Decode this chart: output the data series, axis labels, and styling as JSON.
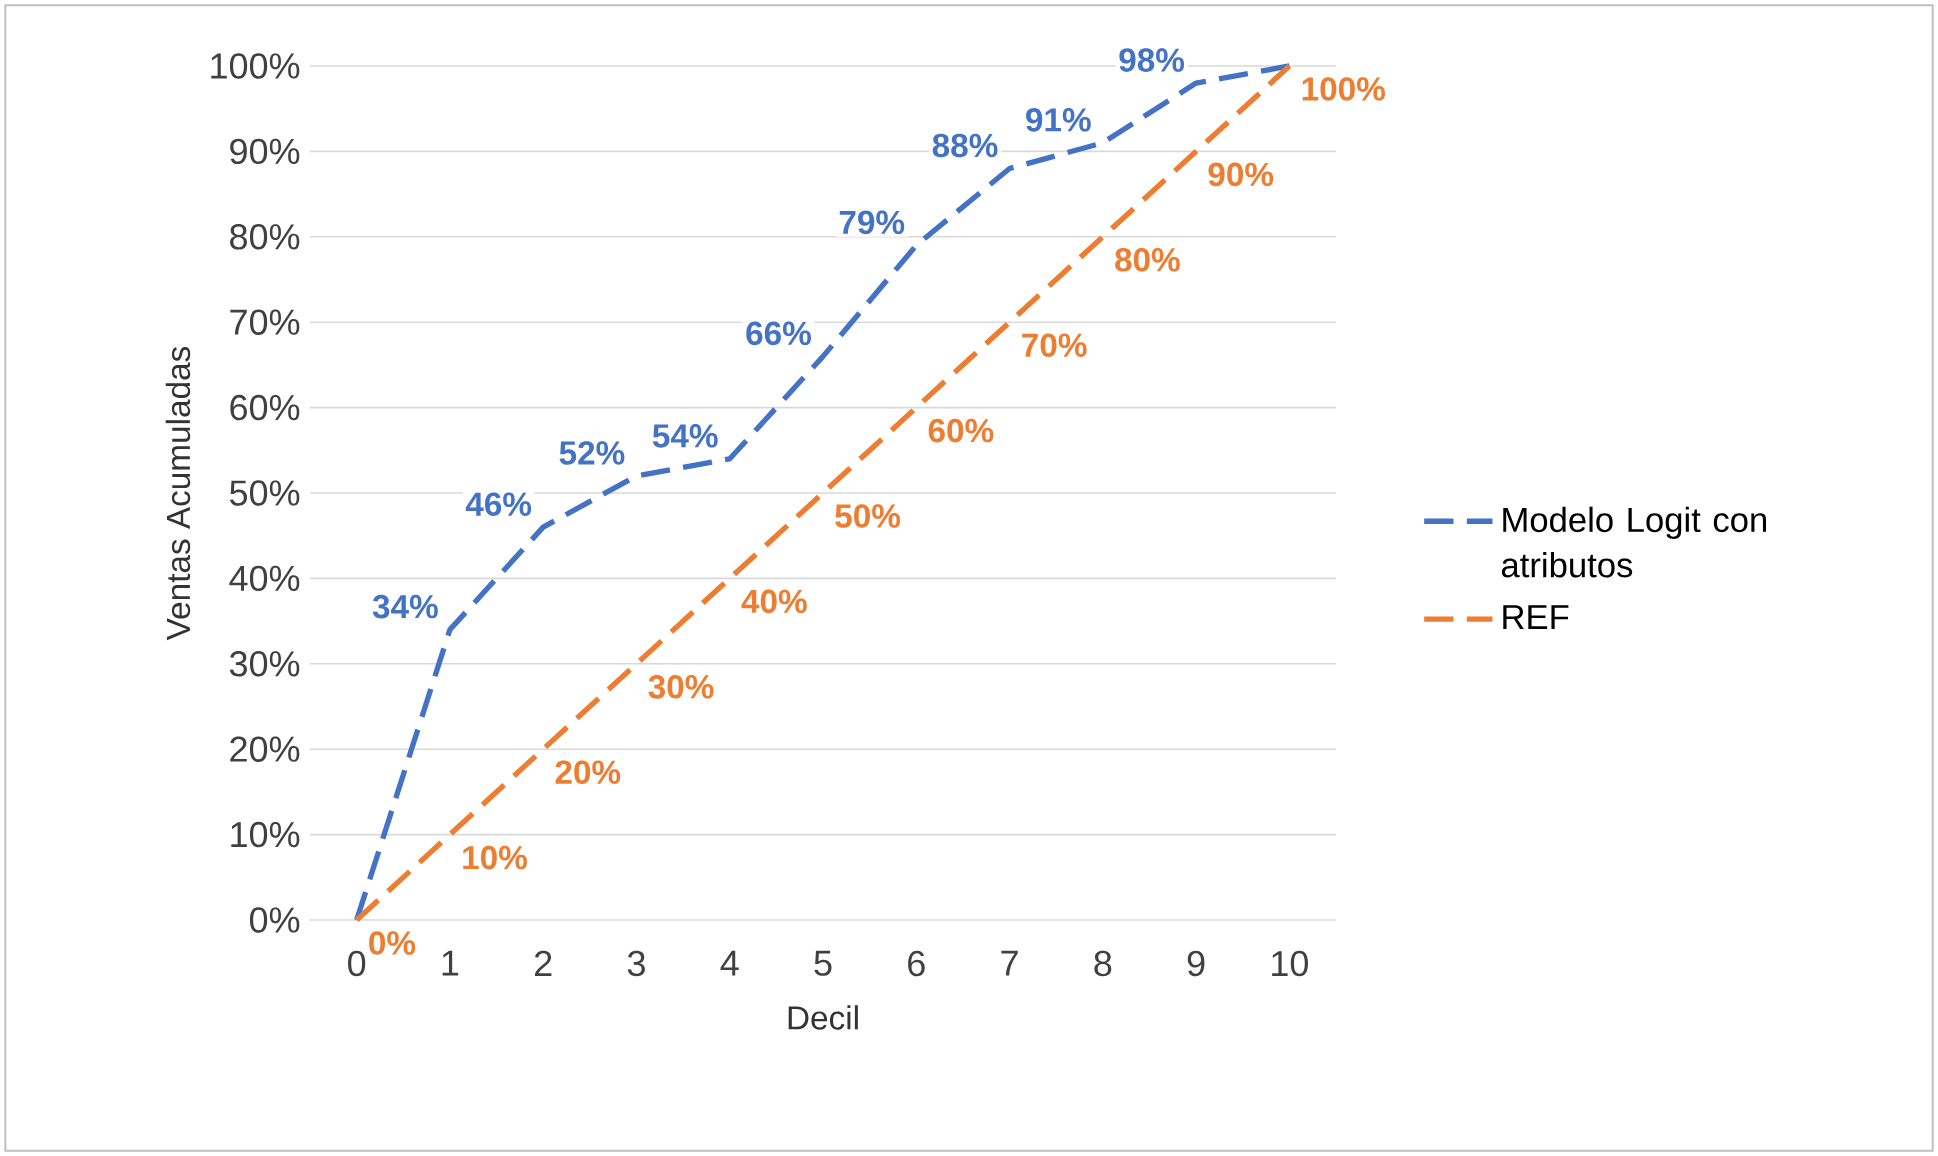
{
  "chart_data": {
    "type": "line",
    "xlabel": "Decil",
    "ylabel": "Ventas Acumuladas",
    "categories": [
      "0",
      "1",
      "2",
      "3",
      "4",
      "5",
      "6",
      "7",
      "8",
      "9",
      "10"
    ],
    "series": [
      {
        "name": "Modelo Logit con atributos",
        "color": "#4472c4",
        "values": [
          0,
          34,
          46,
          52,
          54,
          66,
          79,
          88,
          91,
          98,
          100
        ],
        "value_labels": [
          null,
          "34%",
          "46%",
          "52%",
          "54%",
          "66%",
          "79%",
          "88%",
          "91%",
          "98%",
          null
        ]
      },
      {
        "name": "REF",
        "color": "#ed7d31",
        "values": [
          0,
          10,
          20,
          30,
          40,
          50,
          60,
          70,
          80,
          90,
          100
        ],
        "value_labels": [
          "0%",
          "10%",
          "20%",
          "30%",
          "40%",
          "50%",
          "60%",
          "70%",
          "80%",
          "90%",
          "100%"
        ]
      }
    ],
    "ylim": [
      0,
      100
    ],
    "yticks": [
      {
        "value": 0,
        "label": "0%"
      },
      {
        "value": 10,
        "label": "10%"
      },
      {
        "value": 20,
        "label": "20%"
      },
      {
        "value": 30,
        "label": "30%"
      },
      {
        "value": 40,
        "label": "40%"
      },
      {
        "value": 50,
        "label": "50%"
      },
      {
        "value": 60,
        "label": "60%"
      },
      {
        "value": 70,
        "label": "70%"
      },
      {
        "value": 80,
        "label": "80%"
      },
      {
        "value": 90,
        "label": "90%"
      },
      {
        "value": 100,
        "label": "100%"
      }
    ],
    "grid": "y",
    "legend": "right",
    "line_style": "dashed"
  }
}
